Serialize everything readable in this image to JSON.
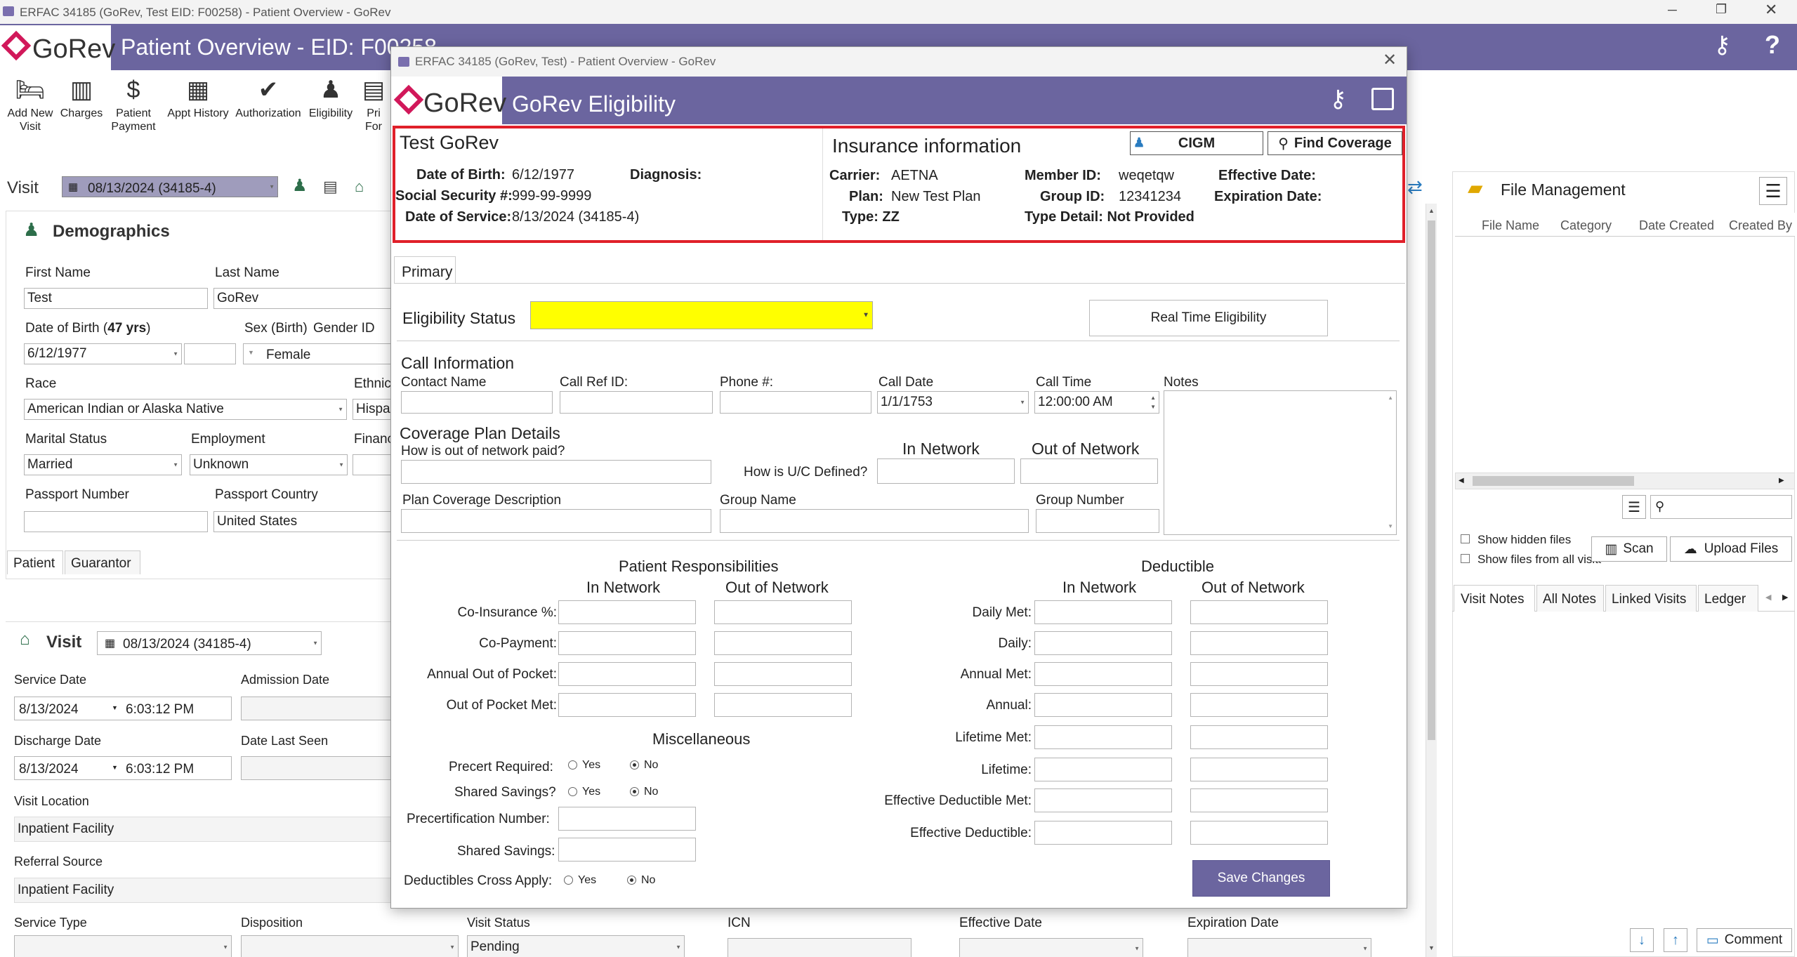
{
  "window": {
    "title": "ERFAC 34185 (GoRev, Test EID: F00258) - Patient Overview - GoRev"
  },
  "header": {
    "brand": "GoRev",
    "title": "Patient Overview - EID: F00258"
  },
  "toolbar": [
    {
      "label": "Add New Visit",
      "icon": "bed-plus-icon"
    },
    {
      "label": "Charges",
      "icon": "barcode-icon"
    },
    {
      "label": "Patient Payment",
      "icon": "money-icon"
    },
    {
      "label": "Appt History",
      "icon": "calendar-icon"
    },
    {
      "label": "Authorization",
      "icon": "shield-check-icon"
    },
    {
      "label": "Eligibility",
      "icon": "person-check-icon"
    },
    {
      "label": "Pri For",
      "icon": "printer-icon"
    }
  ],
  "visit_bar": {
    "label": "Visit",
    "selected": "08/13/2024 (34185-4)"
  },
  "demographics": {
    "title": "Demographics",
    "first_name_label": "First Name",
    "first_name": "Test",
    "last_name_label": "Last Name",
    "last_name": "GoRev",
    "dob_label": "Date of Birth (",
    "age": "47 yrs",
    "dob_label_end": ")",
    "dob": "6/12/1977",
    "sex_label": "Sex (Birth)",
    "gender_label": "Gender ID",
    "sex": "Female",
    "race_label": "Race",
    "race": "American Indian or Alaska Native",
    "ethnicity_label": "Ethnic",
    "ethnicity": "Hispa",
    "marital_label": "Marital Status",
    "marital": "Married",
    "employment_label": "Employment",
    "employment": "Unknown",
    "financial_label": "Financ",
    "passport_number_label": "Passport Number",
    "passport_number": "",
    "passport_country_label": "Passport Country",
    "passport_country": "United States",
    "tabs": [
      "Patient",
      "Guarantor"
    ]
  },
  "visit_section": {
    "title": "Visit",
    "selected": "08/13/2024 (34185-4)",
    "service_date_label": "Service Date",
    "service_date": "8/13/2024",
    "service_time": "6:03:12 PM",
    "admission_date_label": "Admission Date",
    "discharge_date_label": "Discharge Date",
    "discharge_date": "8/13/2024",
    "discharge_time": "6:03:12 PM",
    "date_last_seen_label": "Date Last Seen",
    "visit_location_label": "Visit Location",
    "visit_location": "Inpatient Facility",
    "referral_source_label": "Referral Source",
    "referral_source": "Inpatient Facility",
    "service_type_label": "Service Type",
    "disposition_label": "Disposition",
    "visit_status_label": "Visit Status",
    "visit_status": "Pending",
    "icn_label": "ICN",
    "effective_date_label": "Effective Date",
    "expiration_date_label": "Expiration Date"
  },
  "file_management": {
    "title": "File Management",
    "columns": [
      "File Name",
      "Category",
      "Date Created",
      "Created By"
    ],
    "show_hidden": "Show hidden files",
    "show_all": "Show files from all visits",
    "scan": "Scan",
    "upload": "Upload Files"
  },
  "notes_tabs": [
    "Visit Notes",
    "All Notes",
    "Linked Visits",
    "Ledger"
  ],
  "comment_button": "Comment",
  "dialog": {
    "title": "ERFAC 34185 (GoRev, Test) - Patient Overview - GoRev",
    "header": "GoRev Eligibility",
    "brand": "GoRev",
    "patient": {
      "name": "Test GoRev",
      "dob_label": "Date of Birth:",
      "dob": "6/12/1977",
      "diagnosis_label": "Diagnosis:",
      "ssn_label": "Social Security #:",
      "ssn": "999-99-9999",
      "dos_label": "Date of Service:",
      "dos": "8/13/2024 (34185-4)"
    },
    "insurance": {
      "title": "Insurance information",
      "cigm": "CIGM",
      "find_coverage": "Find Coverage",
      "carrier_label": "Carrier:",
      "carrier": "AETNA",
      "plan_label": "Plan:",
      "plan": "New Test Plan",
      "type_label": "Type:",
      "type": "ZZ",
      "member_id_label": "Member ID:",
      "member_id": "weqetqw",
      "group_id_label": "Group ID:",
      "group_id": "12341234",
      "type_detail_label": "Type Detail:",
      "type_detail": "Not Provided",
      "effective_date_label": "Effective Date:",
      "expiration_date_label": "Expiration Date:"
    },
    "tab": "Primary",
    "eligibility_status_label": "Eligibility Status",
    "real_time_button": "Real Time Eligibility",
    "call_info": {
      "title": "Call Information",
      "contact_name": "Contact Name",
      "call_ref_id": "Call Ref ID:",
      "phone": "Phone #:",
      "call_date": "Call Date",
      "call_date_value": "1/1/1753",
      "call_time": "Call Time",
      "call_time_value": "12:00:00 AM",
      "notes": "Notes"
    },
    "coverage": {
      "title": "Coverage Plan Details",
      "out_of_network_paid": "How is out of network paid?",
      "uc_defined": "How is U/C Defined?",
      "in_network": "In Network",
      "out_of_network": "Out of Network",
      "plan_coverage_description": "Plan Coverage Description",
      "group_name": "Group Name",
      "group_number": "Group Number"
    },
    "responsibilities": {
      "title": "Patient Responsibilities",
      "in_network": "In Network",
      "out_of_network": "Out of Network",
      "rows": [
        "Co-Insurance %:",
        "Co-Payment:",
        "Annual Out of Pocket:",
        "Out of Pocket Met:"
      ]
    },
    "deductible": {
      "title": "Deductible",
      "in_network": "In Network",
      "out_of_network": "Out of Network",
      "rows": [
        "Daily Met:",
        "Daily:",
        "Annual Met:",
        "Annual:",
        "Lifetime Met:",
        "Lifetime:",
        "Effective Deductible Met:",
        "Effective Deductible:"
      ]
    },
    "misc": {
      "title": "Miscellaneous",
      "precert_required": "Precert Required:",
      "shared_savings_q": "Shared Savings?",
      "precert_number": "Precertification Number:",
      "shared_savings": "Shared Savings:",
      "deductibles_cross": "Deductibles Cross Apply:",
      "yes": "Yes",
      "no": "No"
    },
    "save_button": "Save Changes"
  },
  "colors": {
    "header": "#6b659f",
    "accent": "#d1185a",
    "yellow": "#ffff00",
    "highlight": "#e0202a",
    "save": "#6b659f"
  }
}
